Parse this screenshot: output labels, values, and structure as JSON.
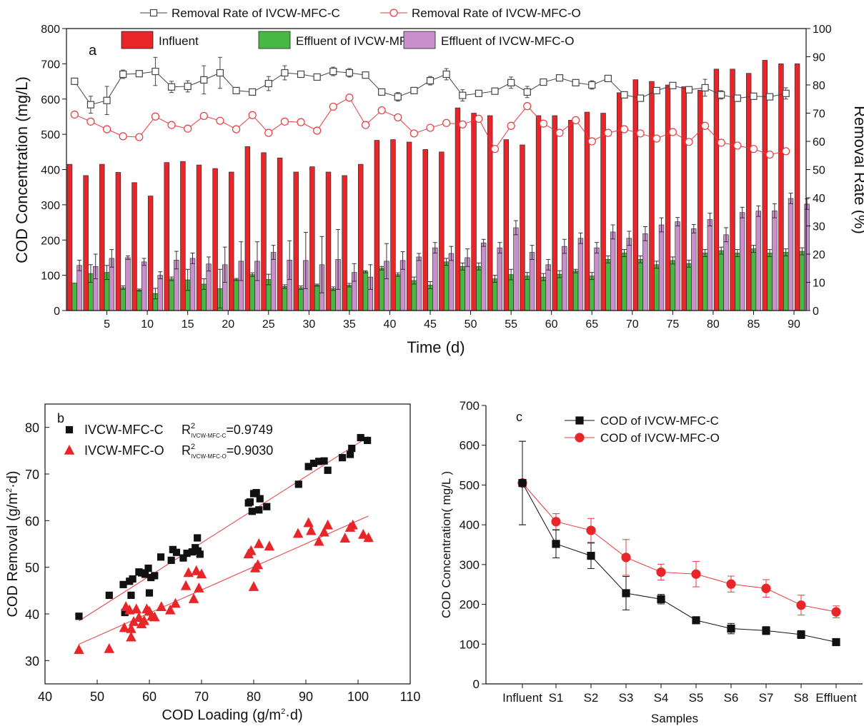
{
  "colors": {
    "influent": "#e8262a",
    "eff_c": "#49b843",
    "eff_o": "#c98fcb",
    "rate_c": "#444444",
    "rate_o": "#e8383d",
    "fit_c": "#e8383d",
    "fit_o": "#e8383d",
    "marker_c": "#111111",
    "marker_o": "#e8262a"
  },
  "chart_data": [
    {
      "panel_label": "a",
      "type": "bar",
      "xlabel": "Time (d)",
      "ylabel": "COD Concentration (mg/L)",
      "y2label": "Removal Rate (%)",
      "xlim": [
        0,
        91.5
      ],
      "ylim": [
        0,
        800
      ],
      "y2lim": [
        0,
        100
      ],
      "xticks": [
        5,
        10,
        15,
        20,
        25,
        30,
        35,
        40,
        45,
        50,
        55,
        60,
        65,
        70,
        75,
        80,
        85,
        90
      ],
      "yticks": [
        0,
        100,
        200,
        300,
        400,
        500,
        600,
        700,
        800
      ],
      "y2ticks": [
        0,
        10,
        20,
        30,
        40,
        50,
        60,
        70,
        80,
        90,
        100
      ],
      "legend_position": "top",
      "x": [
        1,
        3,
        5,
        7,
        9,
        11,
        13,
        15,
        17,
        19,
        21,
        23,
        25,
        27,
        29,
        31,
        33,
        35,
        37,
        39,
        41,
        43,
        45,
        47,
        49,
        51,
        53,
        55,
        57,
        59,
        61,
        63,
        65,
        67,
        69,
        71,
        73,
        75,
        77,
        79,
        81,
        83,
        85,
        87,
        89,
        91
      ],
      "bar_series": [
        {
          "name": "Influent",
          "color_key": "influent",
          "values": [
            415,
            383,
            415,
            392,
            363,
            325,
            420,
            423,
            413,
            403,
            393,
            465,
            448,
            433,
            393,
            408,
            393,
            383,
            415,
            483,
            485,
            478,
            457,
            450,
            575,
            560,
            553,
            485,
            470,
            553,
            553,
            540,
            563,
            560,
            618,
            655,
            650,
            640,
            635,
            625,
            685,
            685,
            673,
            710,
            700,
            700
          ],
          "errors": [
            0,
            0,
            0,
            0,
            0,
            0,
            0,
            0,
            0,
            0,
            0,
            0,
            0,
            0,
            0,
            0,
            0,
            0,
            0,
            0,
            0,
            0,
            0,
            0,
            0,
            0,
            0,
            0,
            0,
            0,
            0,
            0,
            0,
            0,
            0,
            0,
            0,
            0,
            0,
            0,
            0,
            0,
            0,
            0,
            0,
            0
          ]
        },
        {
          "name": "Effluent of IVCW-MFC-C",
          "color_key": "eff_c",
          "values": [
            78,
            105,
            108,
            65,
            58,
            48,
            90,
            87,
            75,
            62,
            88,
            102,
            88,
            68,
            65,
            72,
            62,
            72,
            110,
            120,
            102,
            85,
            72,
            138,
            125,
            125,
            90,
            102,
            98,
            95,
            103,
            112,
            98,
            145,
            163,
            145,
            130,
            142,
            133,
            163,
            170,
            163,
            175,
            163,
            165,
            168
          ],
          "errors": [
            0,
            25,
            20,
            5,
            3,
            15,
            5,
            30,
            15,
            55,
            3,
            5,
            15,
            5,
            5,
            3,
            5,
            5,
            3,
            5,
            5,
            10,
            10,
            10,
            10,
            10,
            10,
            15,
            10,
            10,
            10,
            5,
            10,
            10,
            10,
            10,
            10,
            10,
            10,
            10,
            10,
            10,
            10,
            10,
            10,
            10
          ]
        },
        {
          "name": "Effluent of IVCW-MFC-O",
          "color_key": "eff_o",
          "values": [
            128,
            125,
            148,
            150,
            138,
            100,
            143,
            148,
            132,
            130,
            140,
            140,
            165,
            143,
            142,
            130,
            145,
            108,
            95,
            140,
            142,
            152,
            178,
            162,
            150,
            192,
            178,
            235,
            165,
            130,
            182,
            205,
            178,
            223,
            205,
            218,
            243,
            252,
            232,
            258,
            215,
            278,
            282,
            283,
            318,
            302
          ],
          "errors": [
            15,
            35,
            25,
            5,
            10,
            10,
            25,
            15,
            20,
            50,
            55,
            55,
            20,
            55,
            80,
            80,
            85,
            25,
            35,
            50,
            25,
            10,
            15,
            20,
            25,
            10,
            15,
            20,
            20,
            15,
            20,
            15,
            15,
            20,
            20,
            20,
            20,
            12,
            12,
            18,
            20,
            15,
            15,
            20,
            15,
            15
          ]
        }
      ],
      "line_series": [
        {
          "name": "Removal Rate of IVCW-MFC-C",
          "color_key": "rate_c",
          "axis": "right",
          "x": [
            1,
            3,
            5,
            7,
            9,
            11,
            13,
            15,
            17,
            19,
            21,
            23,
            25,
            27,
            29,
            31,
            33,
            35,
            37,
            39,
            41,
            43,
            45,
            47,
            49,
            51,
            53,
            55,
            57,
            59,
            61,
            63,
            65,
            67,
            69,
            71,
            73,
            75,
            77,
            79,
            81,
            83,
            85,
            87,
            89
          ],
          "values": [
            81.3,
            73,
            74.5,
            83.8,
            84,
            84.8,
            79.3,
            79.5,
            81.8,
            84.3,
            78,
            77.5,
            80.5,
            84.3,
            83.8,
            82.8,
            84.8,
            84.3,
            83.5,
            77.5,
            75.8,
            78,
            81.5,
            83.8,
            76.3,
            77,
            77.8,
            80.8,
            77.5,
            81,
            82.5,
            80.8,
            80,
            82.3,
            76.5,
            75.3,
            78,
            79.8,
            78.3,
            79,
            76.5,
            75.3,
            76,
            75.8,
            77
          ],
          "errors": [
            1,
            3,
            5,
            1.5,
            1,
            5,
            2,
            2,
            5,
            5.5,
            1,
            1,
            2.5,
            2.5,
            1,
            1,
            1.5,
            1.5,
            1,
            1,
            1.5,
            1,
            1.5,
            2,
            2,
            1,
            1,
            2,
            2,
            1,
            1,
            1,
            1.5,
            1,
            1,
            1,
            1,
            1,
            1,
            3,
            1.5,
            1,
            1,
            1,
            2
          ]
        },
        {
          "name": "Removal Rate of IVCW-MFC-O",
          "color_key": "rate_o",
          "axis": "right",
          "x": [
            1,
            3,
            5,
            7,
            9,
            11,
            13,
            15,
            17,
            19,
            21,
            23,
            25,
            27,
            29,
            31,
            33,
            35,
            37,
            39,
            41,
            43,
            45,
            47,
            49,
            51,
            53,
            55,
            57,
            59,
            61,
            63,
            65,
            67,
            69,
            71,
            73,
            75,
            77,
            79,
            81,
            83,
            85,
            87,
            89
          ],
          "values": [
            69.5,
            67,
            64.3,
            61.8,
            61.5,
            68.8,
            65.8,
            64.5,
            69,
            67.3,
            64.3,
            69.3,
            63,
            67,
            66.8,
            63.8,
            72.3,
            75.5,
            65.8,
            71,
            68.5,
            62.8,
            64.8,
            66.5,
            66,
            68,
            57.3,
            65.5,
            72.5,
            66.3,
            63,
            67.5,
            60,
            63,
            64.3,
            62.8,
            61,
            63.3,
            59.8,
            65.5,
            59.5,
            58.5,
            57.3,
            55.3,
            56.5
          ]
        }
      ]
    },
    {
      "panel_label": "b",
      "type": "scatter",
      "xlabel": "COD Loading (g/m",
      "xlabel_sup": "2",
      "xlabel_tail": "·d)",
      "ylabel": "COD Removal (g/m",
      "ylabel_sup": "2",
      "ylabel_tail": "·d)",
      "xlim": [
        40,
        110
      ],
      "ylim": [
        25,
        85
      ],
      "xticks": [
        40,
        50,
        60,
        70,
        80,
        90,
        100,
        110
      ],
      "yticks": [
        30,
        40,
        50,
        60,
        70,
        80
      ],
      "legend_position": "top-left",
      "series": [
        {
          "name": "IVCW-MFC-C",
          "marker": "square",
          "color_key": "marker_c",
          "r2_label": "R",
          "r2_sup": "2",
          "r2_sub": "IVCW-MFC-C",
          "r2_value": "=0.9749",
          "fit": {
            "x": [
              46.5,
              102
            ],
            "y": [
              38.5,
              78
            ]
          },
          "points": [
            [
              46.5,
              39.5
            ],
            [
              52.3,
              44
            ],
            [
              55,
              46.3
            ],
            [
              55.3,
              40.3
            ],
            [
              56.2,
              47
            ],
            [
              56.5,
              44
            ],
            [
              56.8,
              47.5
            ],
            [
              58,
              49
            ],
            [
              58.5,
              48.8
            ],
            [
              59.2,
              48.5
            ],
            [
              59.8,
              49.8
            ],
            [
              60,
              44.5
            ],
            [
              60.3,
              47.8
            ],
            [
              61,
              48.2
            ],
            [
              62.2,
              52.2
            ],
            [
              64.2,
              51.5
            ],
            [
              64.5,
              53.8
            ],
            [
              65.2,
              53.2
            ],
            [
              66.5,
              52
            ],
            [
              67.2,
              53
            ],
            [
              68.2,
              53.3
            ],
            [
              68.8,
              54.2
            ],
            [
              69.2,
              56.3
            ],
            [
              69.3,
              53.5
            ],
            [
              69.7,
              52.8
            ],
            [
              79,
              63.8
            ],
            [
              79.3,
              64
            ],
            [
              79.7,
              62
            ],
            [
              80,
              65.8
            ],
            [
              80.5,
              66
            ],
            [
              81,
              62.3
            ],
            [
              81.2,
              64.7
            ],
            [
              82.5,
              63
            ],
            [
              88.6,
              67.8
            ],
            [
              90.5,
              71.6
            ],
            [
              91.5,
              72.3
            ],
            [
              92.5,
              72.7
            ],
            [
              93.5,
              72.8
            ],
            [
              94.2,
              70.8
            ],
            [
              97,
              73.5
            ],
            [
              98.5,
              74.2
            ],
            [
              98.8,
              75.5
            ],
            [
              100.5,
              77.8
            ],
            [
              101.8,
              77.2
            ]
          ]
        },
        {
          "name": "IVCW-MFC-O",
          "marker": "triangle",
          "color_key": "marker_o",
          "r2_label": "R",
          "r2_sup": "2",
          "r2_sub": "IVCW-MFC-O",
          "r2_value": "=0.9030",
          "fit": {
            "x": [
              46.5,
              102
            ],
            "y": [
              33.5,
              61
            ]
          },
          "points": [
            [
              46.5,
              32.3
            ],
            [
              52.3,
              32.5
            ],
            [
              55.2,
              37
            ],
            [
              55.5,
              41.5
            ],
            [
              56.2,
              40.8
            ],
            [
              56.5,
              35
            ],
            [
              56.5,
              36.8
            ],
            [
              57,
              38.3
            ],
            [
              57.5,
              41
            ],
            [
              58,
              39.2
            ],
            [
              58.5,
              37.8
            ],
            [
              59,
              38.5
            ],
            [
              59.5,
              41
            ],
            [
              60,
              40.5
            ],
            [
              60.5,
              39.5
            ],
            [
              61,
              39.3
            ],
            [
              62.3,
              41.5
            ],
            [
              64,
              40.8
            ],
            [
              65,
              42.2
            ],
            [
              67,
              46
            ],
            [
              67.5,
              48.8
            ],
            [
              68.5,
              43.2
            ],
            [
              69,
              49.2
            ],
            [
              69.5,
              45.5
            ],
            [
              70,
              48.5
            ],
            [
              79,
              52.8
            ],
            [
              79.5,
              53.5
            ],
            [
              80,
              45.8
            ],
            [
              80.3,
              49.8
            ],
            [
              80.8,
              50.5
            ],
            [
              81,
              55
            ],
            [
              83,
              54.5
            ],
            [
              88.5,
              57.2
            ],
            [
              90.5,
              59.5
            ],
            [
              91,
              57.8
            ],
            [
              92.5,
              55.5
            ],
            [
              93.5,
              57.5
            ],
            [
              94.2,
              59
            ],
            [
              97.5,
              56.2
            ],
            [
              98.5,
              58.5
            ],
            [
              99,
              59
            ],
            [
              101,
              57
            ],
            [
              102,
              56.3
            ]
          ]
        }
      ]
    },
    {
      "panel_label": "c",
      "type": "line",
      "xlabel": "Samples",
      "ylabel": "COD Concentration( mg/L )",
      "categories": [
        "Influent",
        "S1",
        "S2",
        "S3",
        "S4",
        "S5",
        "S6",
        "S7",
        "S8",
        "Effluent"
      ],
      "ylim": [
        0,
        700
      ],
      "yticks": [
        0,
        100,
        200,
        300,
        400,
        500,
        600,
        700
      ],
      "legend_position": "top",
      "series": [
        {
          "name": "COD of IVCW-MFC-C",
          "marker": "square",
          "color_key": "marker_c",
          "values": [
            505,
            352,
            322,
            228,
            213,
            160,
            139,
            134,
            124,
            105
          ],
          "errors": [
            105,
            35,
            32,
            42,
            12,
            5,
            13,
            10,
            10,
            9
          ]
        },
        {
          "name": "COD of IVCW-MFC-O",
          "marker": "circle",
          "color_key": "marker_o",
          "values": [
            505,
            408,
            386,
            318,
            281,
            276,
            251,
            240,
            198,
            181
          ],
          "errors": [
            105,
            20,
            30,
            45,
            20,
            32,
            20,
            22,
            25,
            15
          ]
        }
      ]
    }
  ]
}
